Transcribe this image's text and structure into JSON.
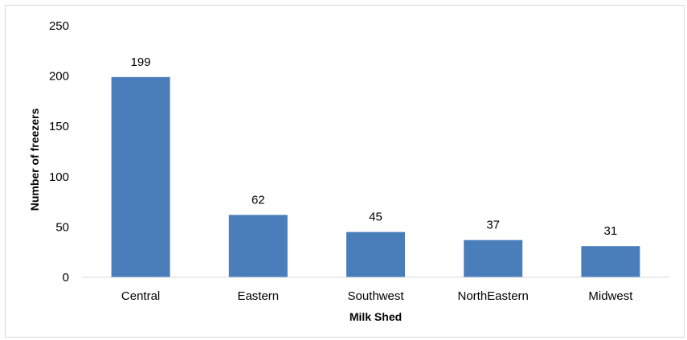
{
  "chart_data": {
    "type": "bar",
    "title": "",
    "xlabel": "Milk Shed",
    "ylabel": "Number of freezers",
    "categories": [
      "Central",
      "Eastern",
      "Southwest",
      "NorthEastern",
      "Midwest"
    ],
    "values": [
      199,
      62,
      45,
      37,
      31
    ],
    "data_labels": [
      "199",
      "62",
      "45",
      "37",
      "31"
    ],
    "ylim": [
      0,
      250
    ],
    "yticks": [
      "0",
      "50",
      "100",
      "150",
      "200",
      "250"
    ],
    "grid": false,
    "legend": "none",
    "bar_color": "#4a7ebb"
  }
}
